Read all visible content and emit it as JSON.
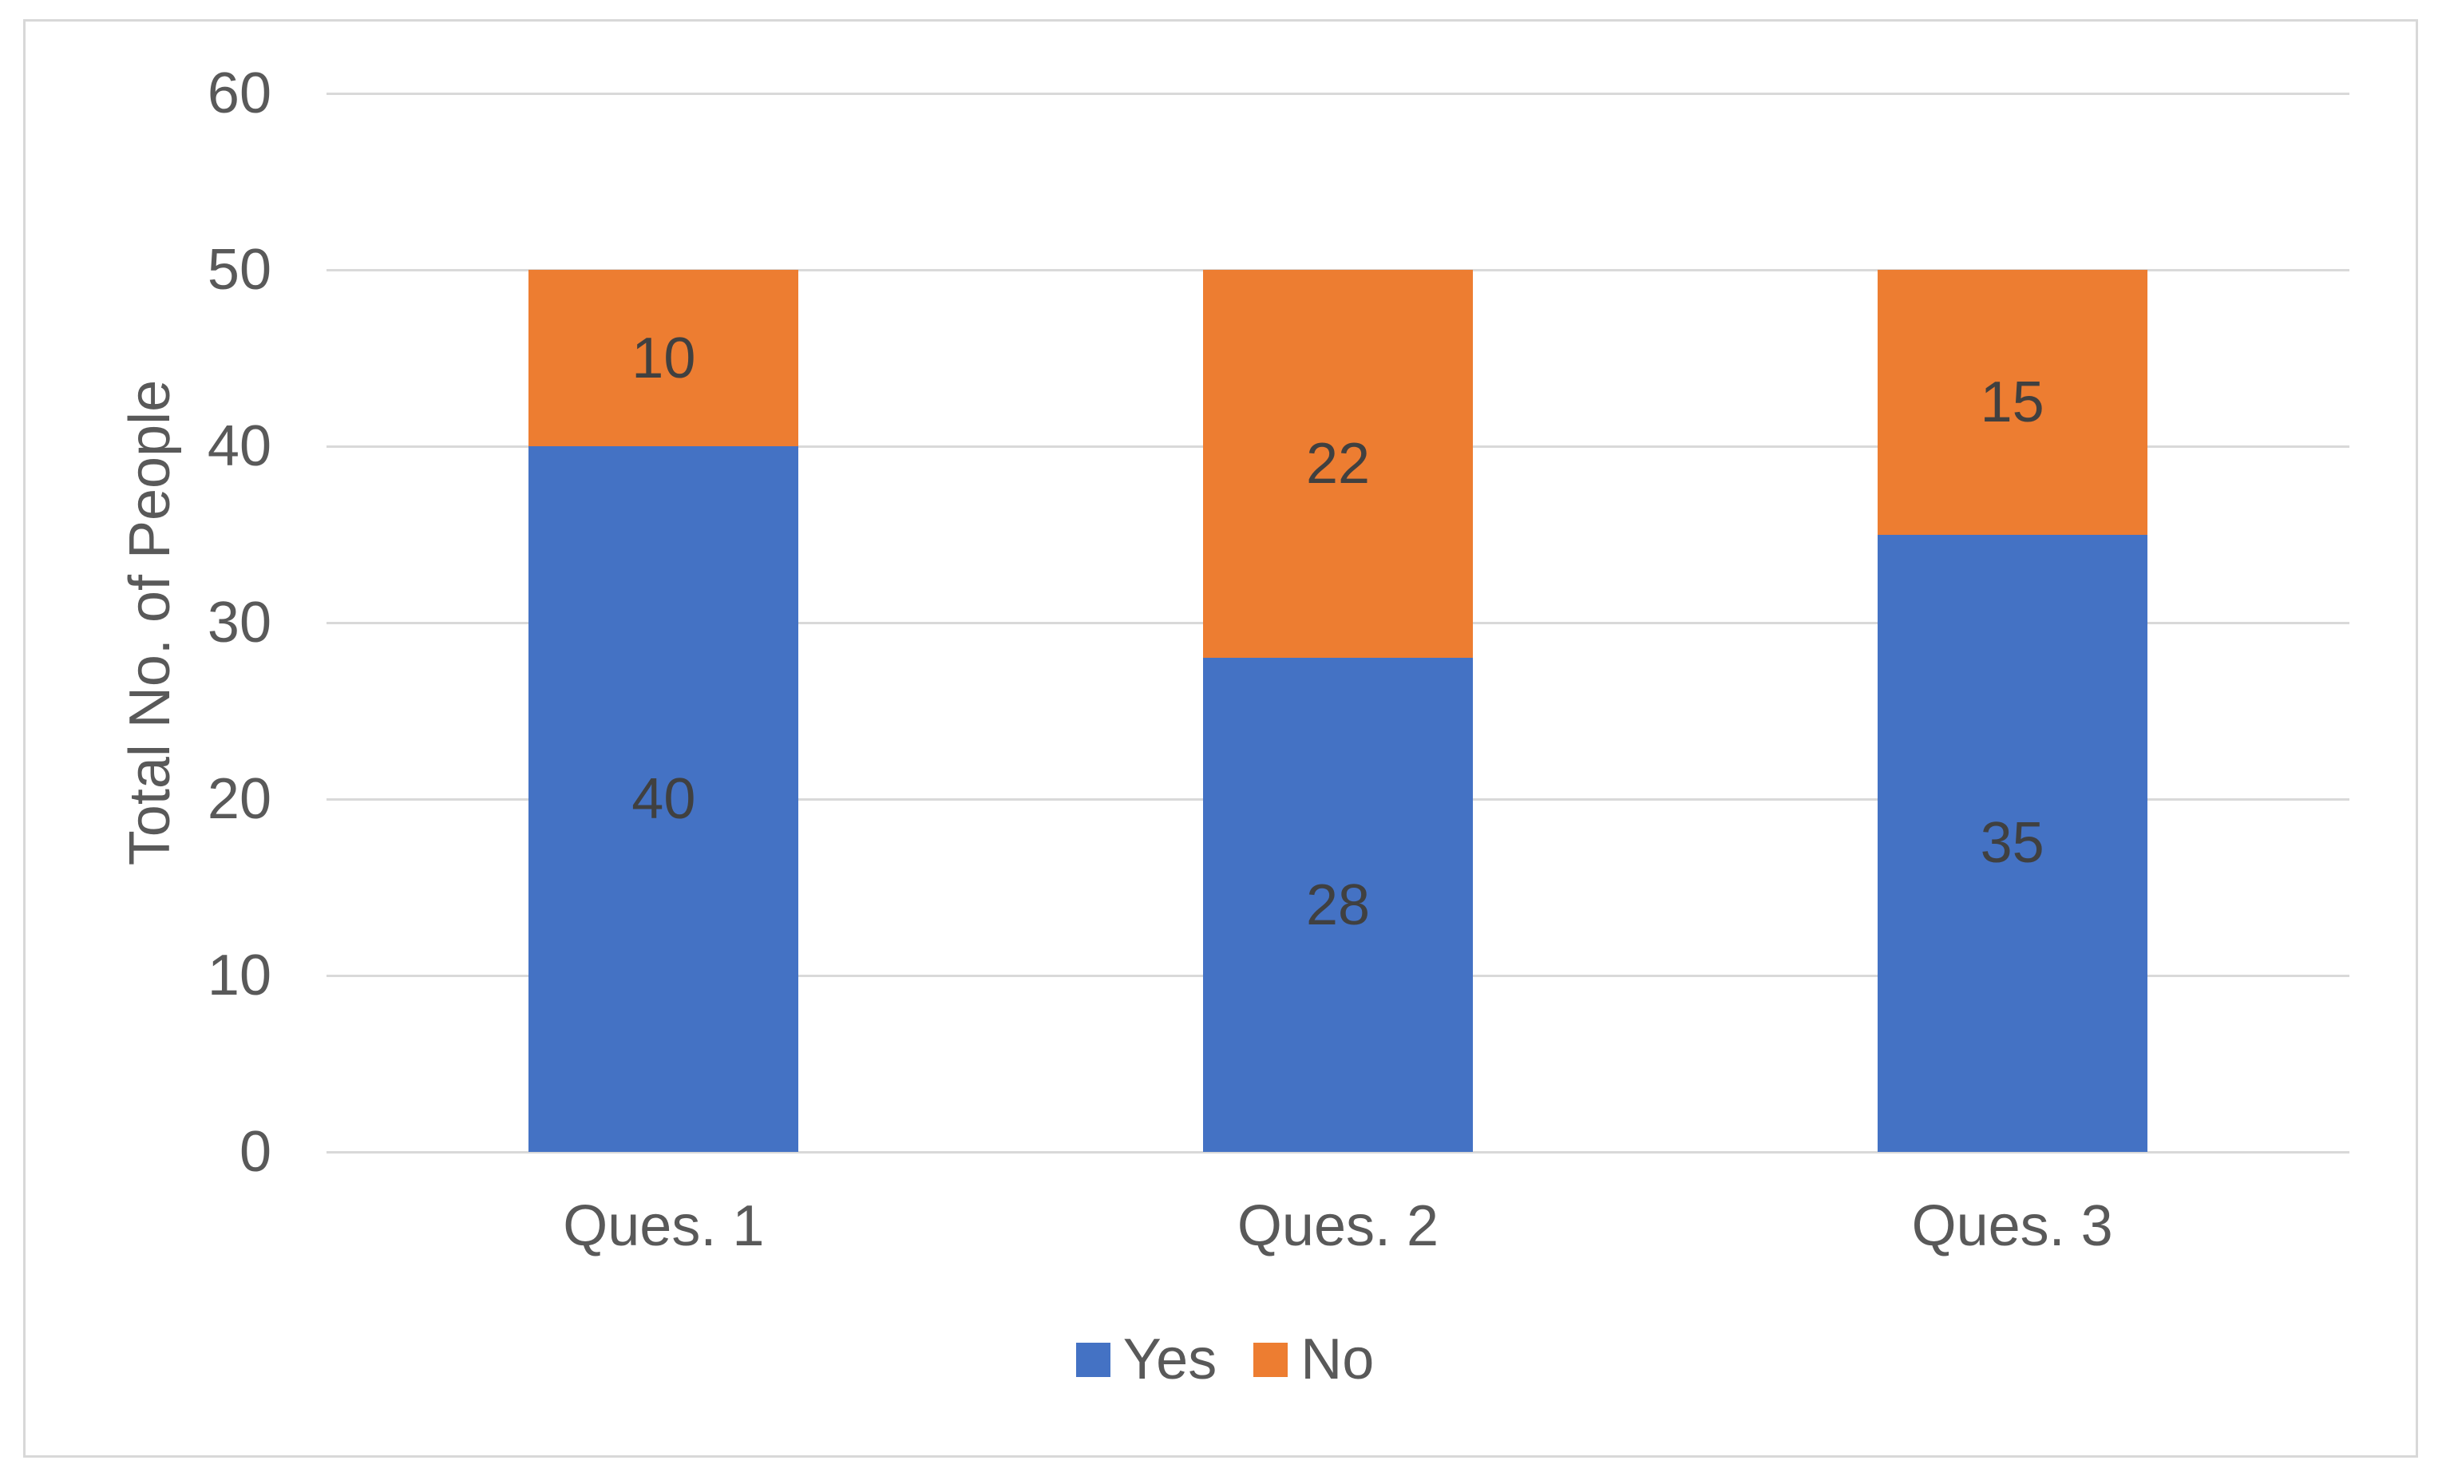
{
  "chart_data": {
    "type": "bar",
    "stacked": true,
    "categories": [
      "Ques. 1",
      "Ques. 2",
      "Ques. 3"
    ],
    "series": [
      {
        "name": "Yes",
        "color": "#4472C4",
        "values": [
          40,
          28,
          35
        ]
      },
      {
        "name": "No",
        "color": "#ED7D31",
        "values": [
          10,
          22,
          15
        ]
      }
    ],
    "title": "",
    "xlabel": "",
    "ylabel": "Total No. of People",
    "ylim": [
      0,
      60
    ],
    "y_ticks": [
      0,
      10,
      20,
      30,
      40,
      50,
      60
    ],
    "grid": "horizontal",
    "legend_position": "bottom",
    "data_labels_visible": true
  },
  "colors": {
    "gridline": "#d9d9d9",
    "chart_border": "#d8d8d8",
    "axis_text": "#595959",
    "data_label_text": "#404040",
    "background": "#ffffff"
  }
}
